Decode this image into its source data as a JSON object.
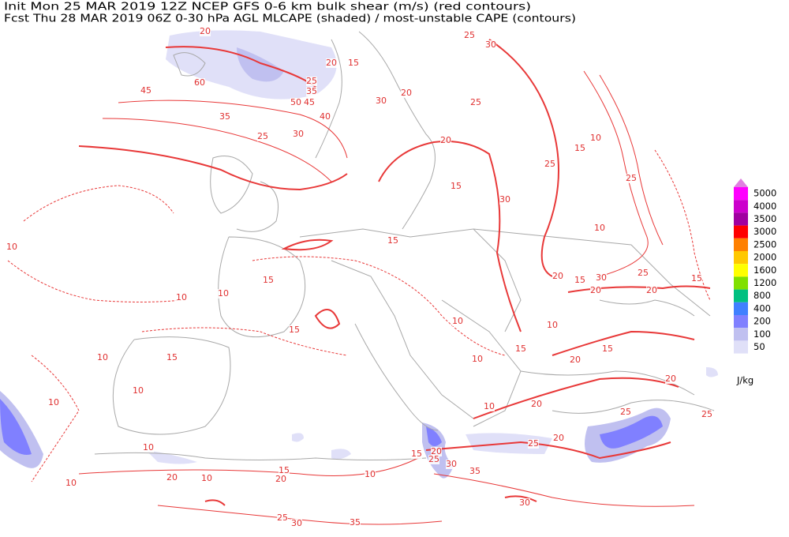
{
  "header": {
    "line1": "Init  Mon 25 MAR 2019 12Z  NCEP GFS 0-6 km bulk shear (m/s) (red contours)",
    "line2": "Fcst Thu 28 MAR 2019 06Z  0-30 hPa AGL MLCAPE (shaded) / most-unstable CAPE (contours)"
  },
  "colorbar": {
    "over_color": "#e080e0",
    "levels": [
      "5000",
      "4000",
      "3500",
      "3000",
      "2500",
      "2000",
      "1600",
      "1200",
      "800",
      "400",
      "200",
      "100",
      "50"
    ],
    "colors": [
      "#ff00ff",
      "#cc00cc",
      "#a000a0",
      "#ff0000",
      "#ff8000",
      "#ffc800",
      "#ffff00",
      "#80e000",
      "#00c080",
      "#4080ff",
      "#8080ff",
      "#c0c0f0",
      "#e0e0f8"
    ],
    "unit": "J/kg"
  },
  "contour_labels": [
    "20",
    "25",
    "30",
    "20",
    "15",
    "60",
    "45",
    "25",
    "35",
    "50",
    "45",
    "40",
    "35",
    "30",
    "25",
    "30",
    "20",
    "25",
    "20",
    "10",
    "15",
    "25",
    "25",
    "15",
    "30",
    "10",
    "15",
    "10",
    "10",
    "10",
    "15",
    "15",
    "20",
    "15",
    "30",
    "25",
    "15",
    "20",
    "20",
    "10",
    "10",
    "15",
    "10",
    "15",
    "20",
    "15",
    "10",
    "10",
    "10",
    "20",
    "10",
    "20",
    "25",
    "25",
    "20",
    "25",
    "30",
    "15",
    "35",
    "20",
    "25",
    "10",
    "10",
    "20",
    "10",
    "15",
    "20",
    "10",
    "30",
    "25",
    "30",
    "35"
  ]
}
